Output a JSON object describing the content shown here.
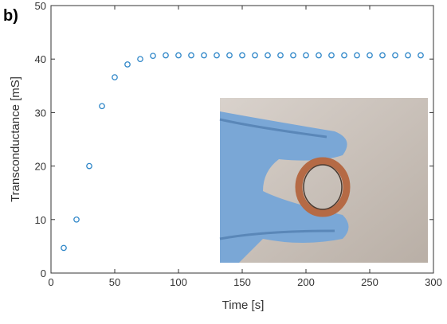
{
  "chart_data": {
    "type": "scatter",
    "panel_label": "b)",
    "x_label": "Time [s]",
    "y_label": "Transconductance [mS]",
    "x": [
      10,
      20,
      30,
      40,
      50,
      60,
      70,
      80,
      90,
      100,
      110,
      120,
      130,
      140,
      150,
      160,
      170,
      180,
      190,
      200,
      210,
      220,
      230,
      240,
      250,
      260,
      270,
      280,
      290
    ],
    "series": [
      {
        "color": "#2e86c8",
        "values": [
          4.7,
          10.0,
          20.0,
          31.2,
          36.6,
          39.0,
          40.0,
          40.6,
          40.7,
          40.7,
          40.7,
          40.7,
          40.7,
          40.7,
          40.7,
          40.7,
          40.7,
          40.7,
          40.7,
          40.7,
          40.7,
          40.7,
          40.7,
          40.7,
          40.7,
          40.7,
          40.7,
          40.7,
          40.7
        ]
      }
    ],
    "xlim": [
      0,
      300
    ],
    "xticks": [
      0,
      50,
      100,
      150,
      200,
      250,
      300
    ],
    "ylim": [
      0,
      50
    ],
    "yticks": [
      0,
      10,
      20,
      30,
      40,
      50
    ]
  }
}
